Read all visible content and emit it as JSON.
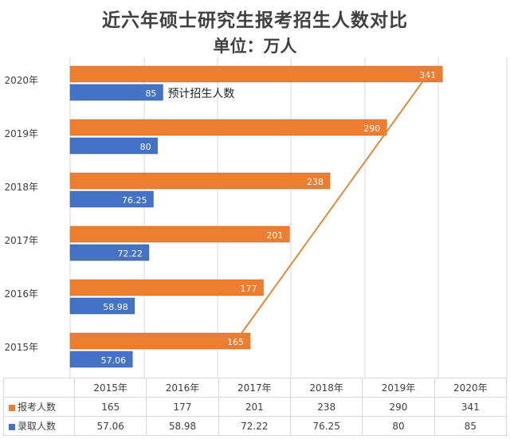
{
  "title": "近六年硕士研究生报考招生人数对比",
  "subtitle": "单位：万人",
  "annotation": "预计招生人数",
  "colors": {
    "apply": "#ED7D31",
    "admit": "#4472C4",
    "trend": "#E08A3A",
    "grid": "#d9d9d9"
  },
  "chart_data": {
    "type": "bar",
    "orientation": "horizontal",
    "title": "近六年硕士研究生报考招生人数对比",
    "subtitle": "单位：万人",
    "categories": [
      "2015年",
      "2016年",
      "2017年",
      "2018年",
      "2019年",
      "2020年"
    ],
    "series": [
      {
        "name": "报考人数",
        "values": [
          165,
          177,
          201,
          238,
          290,
          341
        ],
        "labels": [
          "165",
          "177",
          "201",
          "238",
          "290",
          "341"
        ]
      },
      {
        "name": "录取人数",
        "values": [
          57.06,
          58.98,
          72.22,
          76.25,
          80,
          85
        ],
        "labels": [
          "57.06",
          "58.98",
          "72.22",
          "76.25",
          "80",
          "85"
        ]
      }
    ],
    "xlim": [
      0,
      400
    ],
    "grid": true,
    "trend_line": "报考人数 2015年 → 2020年",
    "data_table": true
  }
}
